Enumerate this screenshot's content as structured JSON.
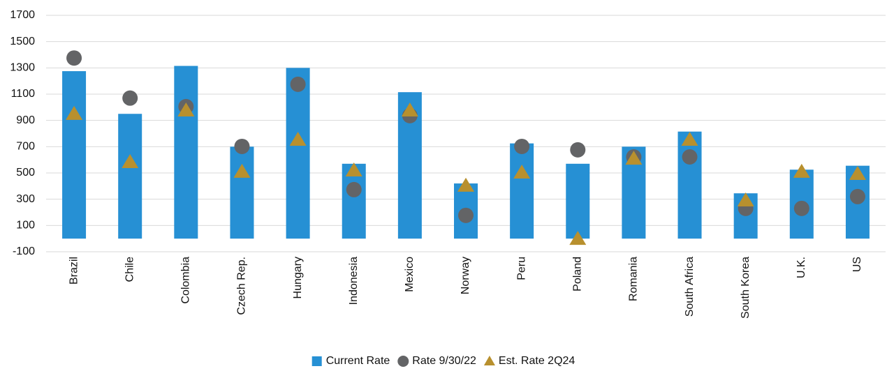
{
  "chart_data": {
    "type": "bar",
    "categories": [
      "Brazil",
      "Chile",
      "Colombia",
      "Czech Rep.",
      "Hungary",
      "Indonesia",
      "Mexico",
      "Norway",
      "Peru",
      "Poland",
      "Romania",
      "South Africa",
      "South Korea",
      "U.K.",
      "US"
    ],
    "series": [
      {
        "name": "Current Rate",
        "type": "bar",
        "color": "#2690d4",
        "values": [
          1275,
          950,
          1315,
          700,
          1300,
          570,
          1115,
          420,
          725,
          570,
          700,
          815,
          345,
          525,
          555
        ]
      },
      {
        "name": "Rate 9/30/22",
        "type": "scatter",
        "marker": "circle",
        "color": "#636466",
        "values": [
          1375,
          1070,
          1005,
          702,
          1175,
          373,
          936,
          177,
          702,
          676,
          622,
          622,
          230,
          230,
          320
        ]
      },
      {
        "name": "Est. Rate 2Q24",
        "type": "scatter",
        "marker": "triangle",
        "color": "#b8902e",
        "values": [
          952,
          585,
          978,
          511,
          755,
          521,
          978,
          405,
          505,
          0,
          611,
          755,
          293,
          511,
          495
        ]
      }
    ],
    "ylim": [
      -100,
      1700
    ],
    "yticks": [
      -100,
      100,
      300,
      500,
      700,
      900,
      1100,
      1300,
      1500,
      1700
    ],
    "grid": true,
    "legend": "bottom"
  }
}
